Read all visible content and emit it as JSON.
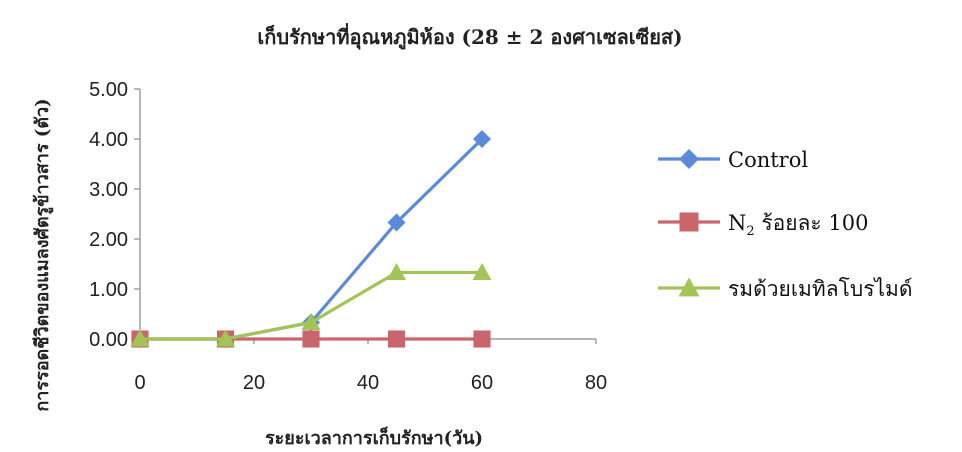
{
  "chart_data": {
    "type": "line",
    "title": "เก็บรักษาที่อุณหภูมิห้อง (28 ± 2  องศาเซลเซียส)",
    "xlabel": "ระยะเวลาการเก็บรักษา(วัน)",
    "ylabel": "การรอดชีวิตของแมลงศัตรูข้าวสาร (ตัว)",
    "xlim": [
      0,
      80
    ],
    "ylim": [
      0,
      5
    ],
    "xticks": [
      "0",
      "20",
      "40",
      "60",
      "80"
    ],
    "yticks": [
      "0.00",
      "1.00",
      "2.00",
      "3.00",
      "4.00",
      "5.00"
    ],
    "grid": false,
    "legend_position": "right",
    "x": [
      0,
      15,
      30,
      45,
      60
    ],
    "series": [
      {
        "name": "Control",
        "name_main": "Control",
        "name_sub": "",
        "name_rest": "",
        "marker": "diamond",
        "color": "#5b8ad8",
        "values": [
          0,
          0,
          0.33,
          2.33,
          4.0
        ]
      },
      {
        "name": "N2 ร้อยละ 100",
        "name_main": "N",
        "name_sub": "2",
        "name_rest": " ร้อยละ 100",
        "marker": "square",
        "color": "#c9666c",
        "values": [
          0,
          0,
          0,
          0,
          0
        ]
      },
      {
        "name": "รมด้วยเมทิลโบรไมด์",
        "name_main": "รมด้วยเมทิลโบรไมด์",
        "name_sub": "",
        "name_rest": "",
        "marker": "triangle",
        "color": "#a3c456",
        "values": [
          0,
          0,
          0.33,
          1.33,
          1.33
        ]
      }
    ]
  }
}
